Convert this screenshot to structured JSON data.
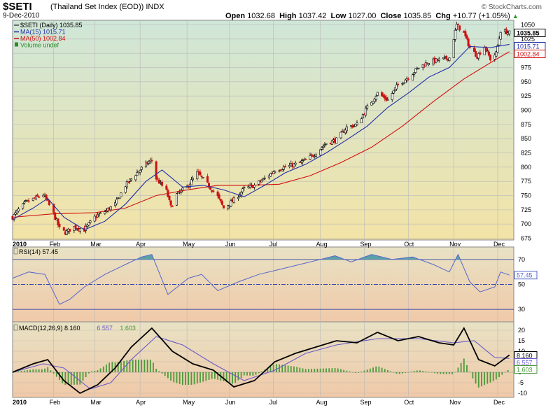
{
  "header": {
    "symbol": "$SETI",
    "name": "(Thailand Set Index (EOD))",
    "exchange": "INDX",
    "date": "9-Dec-2010",
    "brand": "© StockCharts.com",
    "open_label": "Open",
    "open": "1032.68",
    "high_label": "High",
    "high": "1037.42",
    "low_label": "Low",
    "low": "1027.00",
    "close_label": "Close",
    "close": "1035.85",
    "chg_label": "Chg",
    "chg": "+10.77 (+1.05%)",
    "chg_arrow": "▲"
  },
  "colors": {
    "price_bg_top": "#cfe6d8",
    "price_bg_bottom": "#f3e3a6",
    "ind_bg_top": "#e8e2c4",
    "ind_bg_bottom": "#f0c9a8",
    "ma15": "#1f2ea8",
    "ma50": "#d01010",
    "volume": "#2e8b2e",
    "rsi_line": "#5566cc",
    "rsi_fill": "#5aa0a8",
    "macd": "#000000",
    "signal": "#6a5acd",
    "histogram": "#4a9a3a"
  },
  "chart_data": [
    {
      "type": "candlestick",
      "title": "$SETI (Daily) 1035.85",
      "legend": [
        {
          "label": "$SETI (Daily) 1035.85",
          "color": "#000000"
        },
        {
          "label": "MA(15) 1015.71",
          "color": "#1f2ea8"
        },
        {
          "label": "MA(50) 1002.84",
          "color": "#d01010"
        },
        {
          "label": "Volume undef",
          "color": "#2e8b2e"
        }
      ],
      "legend_position": "top-left",
      "y_ticks": [
        675,
        700,
        725,
        750,
        775,
        800,
        825,
        850,
        875,
        900,
        925,
        950,
        975,
        1000,
        1025,
        1050
      ],
      "ylim": [
        672,
        1058
      ],
      "x_tick_labels": [
        "2010",
        "Feb",
        "Mar",
        "Apr",
        "May",
        "Jun",
        "Jul",
        "Aug",
        "Sep",
        "Oct",
        "Nov",
        "Dec"
      ],
      "last_values": {
        "close": "1035.85",
        "ma15": "1015.71",
        "ma50": "1002.84"
      },
      "close_path": [
        {
          "date": "2010-01-04",
          "close": 712
        },
        {
          "date": "2010-01-08",
          "close": 725
        },
        {
          "date": "2010-01-13",
          "close": 738
        },
        {
          "date": "2010-01-19",
          "close": 745
        },
        {
          "date": "2010-01-25",
          "close": 752
        },
        {
          "date": "2010-01-28",
          "close": 738
        },
        {
          "date": "2010-02-01",
          "close": 718
        },
        {
          "date": "2010-02-05",
          "close": 692
        },
        {
          "date": "2010-02-09",
          "close": 685
        },
        {
          "date": "2010-02-15",
          "close": 695
        },
        {
          "date": "2010-02-22",
          "close": 690
        },
        {
          "date": "2010-03-01",
          "close": 712
        },
        {
          "date": "2010-03-08",
          "close": 722
        },
        {
          "date": "2010-03-15",
          "close": 735
        },
        {
          "date": "2010-03-22",
          "close": 768
        },
        {
          "date": "2010-03-29",
          "close": 788
        },
        {
          "date": "2010-04-05",
          "close": 805
        },
        {
          "date": "2010-04-09",
          "close": 812
        },
        {
          "date": "2010-04-12",
          "close": 780
        },
        {
          "date": "2010-04-19",
          "close": 758
        },
        {
          "date": "2010-04-22",
          "close": 730
        },
        {
          "date": "2010-04-26",
          "close": 752
        },
        {
          "date": "2010-05-03",
          "close": 765
        },
        {
          "date": "2010-05-10",
          "close": 790
        },
        {
          "date": "2010-05-17",
          "close": 770
        },
        {
          "date": "2010-05-24",
          "close": 748
        },
        {
          "date": "2010-05-28",
          "close": 728
        },
        {
          "date": "2010-06-04",
          "close": 742
        },
        {
          "date": "2010-06-11",
          "close": 762
        },
        {
          "date": "2010-06-18",
          "close": 768
        },
        {
          "date": "2010-06-25",
          "close": 780
        },
        {
          "date": "2010-07-02",
          "close": 795
        },
        {
          "date": "2010-07-09",
          "close": 800
        },
        {
          "date": "2010-07-16",
          "close": 805
        },
        {
          "date": "2010-07-23",
          "close": 812
        },
        {
          "date": "2010-07-30",
          "close": 825
        },
        {
          "date": "2010-08-06",
          "close": 842
        },
        {
          "date": "2010-08-13",
          "close": 848
        },
        {
          "date": "2010-08-20",
          "close": 870
        },
        {
          "date": "2010-08-27",
          "close": 875
        },
        {
          "date": "2010-09-03",
          "close": 905
        },
        {
          "date": "2010-09-10",
          "close": 930
        },
        {
          "date": "2010-09-17",
          "close": 918
        },
        {
          "date": "2010-09-24",
          "close": 945
        },
        {
          "date": "2010-10-01",
          "close": 958
        },
        {
          "date": "2010-10-08",
          "close": 975
        },
        {
          "date": "2010-10-15",
          "close": 985
        },
        {
          "date": "2010-10-22",
          "close": 988
        },
        {
          "date": "2010-10-29",
          "close": 992
        },
        {
          "date": "2010-11-03",
          "close": 1050
        },
        {
          "date": "2010-11-08",
          "close": 1035
        },
        {
          "date": "2010-11-12",
          "close": 1010
        },
        {
          "date": "2010-11-17",
          "close": 995
        },
        {
          "date": "2010-11-22",
          "close": 1012
        },
        {
          "date": "2010-11-26",
          "close": 990
        },
        {
          "date": "2010-11-30",
          "close": 1000
        },
        {
          "date": "2010-12-03",
          "close": 1040
        },
        {
          "date": "2010-12-09",
          "close": 1035.85
        }
      ],
      "ma15_path": [
        {
          "date": "2010-01-04",
          "value": 708
        },
        {
          "date": "2010-01-18",
          "value": 728
        },
        {
          "date": "2010-01-28",
          "value": 745
        },
        {
          "date": "2010-02-08",
          "value": 712
        },
        {
          "date": "2010-02-22",
          "value": 690
        },
        {
          "date": "2010-03-08",
          "value": 705
        },
        {
          "date": "2010-03-22",
          "value": 735
        },
        {
          "date": "2010-04-05",
          "value": 775
        },
        {
          "date": "2010-04-16",
          "value": 795
        },
        {
          "date": "2010-04-30",
          "value": 765
        },
        {
          "date": "2010-05-14",
          "value": 768
        },
        {
          "date": "2010-05-28",
          "value": 760
        },
        {
          "date": "2010-06-11",
          "value": 748
        },
        {
          "date": "2010-06-25",
          "value": 768
        },
        {
          "date": "2010-07-09",
          "value": 790
        },
        {
          "date": "2010-07-23",
          "value": 805
        },
        {
          "date": "2010-08-06",
          "value": 825
        },
        {
          "date": "2010-08-20",
          "value": 848
        },
        {
          "date": "2010-09-03",
          "value": 872
        },
        {
          "date": "2010-09-17",
          "value": 905
        },
        {
          "date": "2010-10-01",
          "value": 930
        },
        {
          "date": "2010-10-15",
          "value": 958
        },
        {
          "date": "2010-10-29",
          "value": 975
        },
        {
          "date": "2010-11-12",
          "value": 1012
        },
        {
          "date": "2010-11-26",
          "value": 1010
        },
        {
          "date": "2010-12-09",
          "value": 1015.71
        }
      ],
      "ma50_path": [
        {
          "date": "2010-01-04",
          "value": 712
        },
        {
          "date": "2010-02-01",
          "value": 718
        },
        {
          "date": "2010-03-01",
          "value": 720
        },
        {
          "date": "2010-03-22",
          "value": 728
        },
        {
          "date": "2010-04-12",
          "value": 750
        },
        {
          "date": "2010-05-03",
          "value": 760
        },
        {
          "date": "2010-05-24",
          "value": 768
        },
        {
          "date": "2010-06-14",
          "value": 768
        },
        {
          "date": "2010-07-05",
          "value": 770
        },
        {
          "date": "2010-07-26",
          "value": 785
        },
        {
          "date": "2010-08-16",
          "value": 808
        },
        {
          "date": "2010-09-06",
          "value": 835
        },
        {
          "date": "2010-09-27",
          "value": 872
        },
        {
          "date": "2010-10-18",
          "value": 915
        },
        {
          "date": "2010-11-08",
          "value": 955
        },
        {
          "date": "2010-11-29",
          "value": 988
        },
        {
          "date": "2010-12-09",
          "value": 1002.84
        }
      ]
    },
    {
      "type": "line",
      "title": "RSI(14) 57.45",
      "y_ticks": [
        30,
        50,
        70
      ],
      "ylim": [
        20,
        80
      ],
      "reference_lines": [
        30,
        50,
        70
      ],
      "last_value": "57.45",
      "rsi_path": [
        {
          "date": "2010-01-04",
          "value": 55
        },
        {
          "date": "2010-01-15",
          "value": 60
        },
        {
          "date": "2010-01-26",
          "value": 58
        },
        {
          "date": "2010-02-05",
          "value": 34
        },
        {
          "date": "2010-02-12",
          "value": 38
        },
        {
          "date": "2010-02-22",
          "value": 48
        },
        {
          "date": "2010-03-08",
          "value": 58
        },
        {
          "date": "2010-03-22",
          "value": 66
        },
        {
          "date": "2010-04-02",
          "value": 72
        },
        {
          "date": "2010-04-09",
          "value": 74
        },
        {
          "date": "2010-04-20",
          "value": 42
        },
        {
          "date": "2010-05-04",
          "value": 55
        },
        {
          "date": "2010-05-13",
          "value": 58
        },
        {
          "date": "2010-05-24",
          "value": 45
        },
        {
          "date": "2010-06-07",
          "value": 52
        },
        {
          "date": "2010-06-21",
          "value": 58
        },
        {
          "date": "2010-07-05",
          "value": 62
        },
        {
          "date": "2010-07-19",
          "value": 66
        },
        {
          "date": "2010-08-02",
          "value": 70
        },
        {
          "date": "2010-08-12",
          "value": 73
        },
        {
          "date": "2010-08-23",
          "value": 68
        },
        {
          "date": "2010-09-06",
          "value": 74
        },
        {
          "date": "2010-09-20",
          "value": 70
        },
        {
          "date": "2010-10-04",
          "value": 72
        },
        {
          "date": "2010-10-18",
          "value": 66
        },
        {
          "date": "2010-10-29",
          "value": 60
        },
        {
          "date": "2010-11-04",
          "value": 74
        },
        {
          "date": "2010-11-12",
          "value": 52
        },
        {
          "date": "2010-11-19",
          "value": 44
        },
        {
          "date": "2010-11-29",
          "value": 48
        },
        {
          "date": "2010-12-03",
          "value": 60
        },
        {
          "date": "2010-12-09",
          "value": 57.45
        }
      ]
    },
    {
      "type": "line",
      "title": "MACD(12,26,9) 8.160, 6.557, 1.603",
      "legend": [
        {
          "label": "MACD(12,26,9) 8.160",
          "color": "#000000"
        },
        {
          "label": "6.557",
          "color": "#6a5acd"
        },
        {
          "label": "1.603",
          "color": "#4a9a3a"
        }
      ],
      "y_ticks": [
        -10,
        -5,
        0,
        5,
        10,
        15,
        20
      ],
      "ylim": [
        -12,
        24
      ],
      "last_values": {
        "macd": "8.160",
        "signal": "6.557",
        "histogram": "1.603"
      },
      "macd_path": [
        {
          "date": "2010-01-04",
          "value": 0
        },
        {
          "date": "2010-01-18",
          "value": 4
        },
        {
          "date": "2010-01-28",
          "value": 6
        },
        {
          "date": "2010-02-08",
          "value": -4
        },
        {
          "date": "2010-02-19",
          "value": -10
        },
        {
          "date": "2010-03-03",
          "value": -6
        },
        {
          "date": "2010-03-15",
          "value": 2
        },
        {
          "date": "2010-03-26",
          "value": 12
        },
        {
          "date": "2010-04-09",
          "value": 21
        },
        {
          "date": "2010-04-23",
          "value": 10
        },
        {
          "date": "2010-05-07",
          "value": 4
        },
        {
          "date": "2010-05-21",
          "value": 1
        },
        {
          "date": "2010-06-04",
          "value": -7
        },
        {
          "date": "2010-06-18",
          "value": -4
        },
        {
          "date": "2010-07-02",
          "value": 5
        },
        {
          "date": "2010-07-16",
          "value": 9
        },
        {
          "date": "2010-07-30",
          "value": 12
        },
        {
          "date": "2010-08-13",
          "value": 15
        },
        {
          "date": "2010-08-27",
          "value": 14
        },
        {
          "date": "2010-09-10",
          "value": 19
        },
        {
          "date": "2010-09-24",
          "value": 15
        },
        {
          "date": "2010-10-08",
          "value": 17
        },
        {
          "date": "2010-10-22",
          "value": 14
        },
        {
          "date": "2010-11-01",
          "value": 13
        },
        {
          "date": "2010-11-08",
          "value": 21
        },
        {
          "date": "2010-11-18",
          "value": 6
        },
        {
          "date": "2010-11-29",
          "value": 3
        },
        {
          "date": "2010-12-09",
          "value": 8.16
        }
      ],
      "signal_path": [
        {
          "date": "2010-01-04",
          "value": 0
        },
        {
          "date": "2010-01-25",
          "value": 4
        },
        {
          "date": "2010-02-08",
          "value": 2
        },
        {
          "date": "2010-02-26",
          "value": -8
        },
        {
          "date": "2010-03-12",
          "value": -5
        },
        {
          "date": "2010-03-26",
          "value": 6
        },
        {
          "date": "2010-04-12",
          "value": 17
        },
        {
          "date": "2010-04-30",
          "value": 13
        },
        {
          "date": "2010-05-21",
          "value": 4
        },
        {
          "date": "2010-06-11",
          "value": -4
        },
        {
          "date": "2010-07-02",
          "value": 1
        },
        {
          "date": "2010-07-23",
          "value": 9
        },
        {
          "date": "2010-08-13",
          "value": 13
        },
        {
          "date": "2010-09-10",
          "value": 16
        },
        {
          "date": "2010-10-08",
          "value": 16
        },
        {
          "date": "2010-11-01",
          "value": 14
        },
        {
          "date": "2010-11-15",
          "value": 15
        },
        {
          "date": "2010-11-29",
          "value": 7
        },
        {
          "date": "2010-12-09",
          "value": 6.557
        }
      ]
    }
  ]
}
